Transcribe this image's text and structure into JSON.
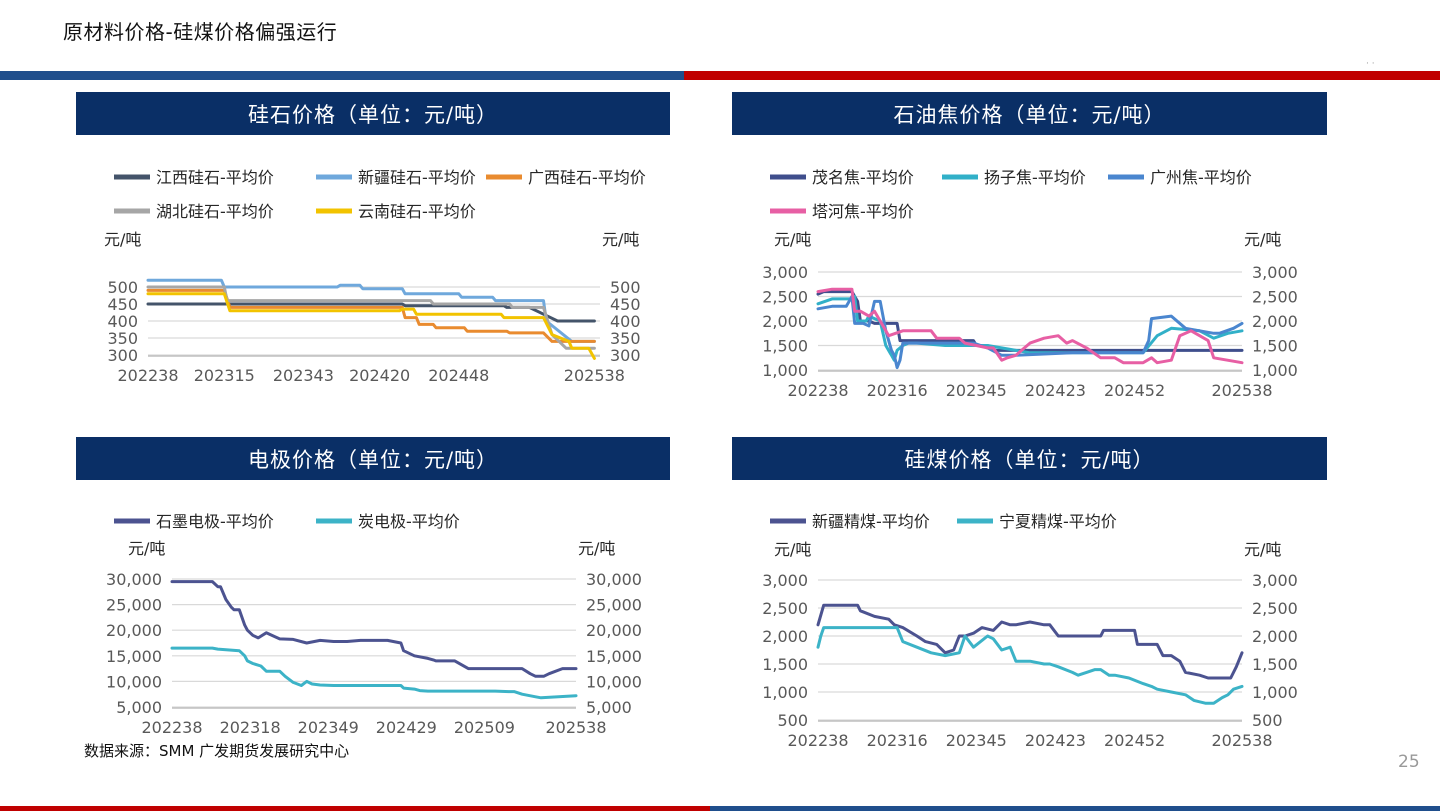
{
  "page": {
    "title": "原材料价格-硅煤价格偏强运行",
    "source": "数据来源：SMM 广发期货发展研究中心",
    "page_number": "25",
    "corner_mark": "· ·"
  },
  "colors": {
    "header_bg": "#0a2f66",
    "top_bar_blue": "#1f4e8c",
    "top_bar_red": "#c00000",
    "grid": "#d9d9d9",
    "axis_text": "#595959"
  },
  "chart_data": [
    {
      "id": "silica",
      "type": "line",
      "title": "硅石价格（单位：元/吨）",
      "ylabel_left": "元/吨",
      "ylabel_right": "元/吨",
      "ylim": [
        300,
        500
      ],
      "yticks": [
        300,
        350,
        400,
        450,
        500
      ],
      "yticklabels": [
        "300",
        "350",
        "400",
        "450",
        "500"
      ],
      "x_range": [
        0,
        160
      ],
      "xticks": [
        0,
        27,
        55,
        82,
        110,
        158
      ],
      "xticklabels": [
        "202238",
        "202315",
        "202343",
        "202420",
        "202448",
        "202538"
      ],
      "legend_rows": [
        [
          0,
          1,
          2
        ],
        [
          3,
          4
        ]
      ],
      "series": [
        {
          "name": "江西硅石-平均价",
          "color": "#44546a",
          "x": [
            0,
            27,
            28,
            48,
            49,
            90,
            91,
            126,
            127,
            135,
            140,
            145,
            158
          ],
          "values": [
            450,
            450,
            450,
            450,
            450,
            450,
            445,
            445,
            440,
            440,
            420,
            400,
            400
          ]
        },
        {
          "name": "新疆硅石-平均价",
          "color": "#6fa8dc",
          "x": [
            0,
            26,
            27,
            67,
            68,
            75,
            76,
            90,
            91,
            110,
            111,
            122,
            123,
            140,
            141,
            150,
            158
          ],
          "values": [
            520,
            520,
            500,
            500,
            505,
            505,
            495,
            495,
            480,
            480,
            470,
            470,
            460,
            460,
            400,
            340,
            340
          ]
        },
        {
          "name": "广西硅石-平均价",
          "color": "#e98b2f",
          "x": [
            0,
            27,
            29,
            90,
            91,
            95,
            96,
            101,
            102,
            112,
            113,
            127,
            128,
            140,
            143,
            158
          ],
          "values": [
            490,
            490,
            440,
            440,
            410,
            410,
            390,
            390,
            380,
            380,
            370,
            370,
            365,
            365,
            340,
            340
          ]
        },
        {
          "name": "湖北硅石-平均价",
          "color": "#a6a6a6",
          "x": [
            0,
            27,
            28,
            100,
            101,
            128,
            129,
            140,
            143,
            148,
            158
          ],
          "values": [
            500,
            500,
            460,
            460,
            450,
            450,
            440,
            440,
            360,
            320,
            320
          ]
        },
        {
          "name": "云南硅石-平均价",
          "color": "#f2c300",
          "x": [
            0,
            27,
            29,
            89,
            90,
            94,
            95,
            125,
            126,
            140,
            143,
            149,
            150,
            156,
            158
          ],
          "values": [
            480,
            480,
            430,
            430,
            435,
            435,
            420,
            420,
            410,
            410,
            360,
            340,
            320,
            320,
            290
          ]
        }
      ]
    },
    {
      "id": "petcoke",
      "type": "line",
      "title": "石油焦价格（单位：元/吨）",
      "ylabel_left": "元/吨",
      "ylabel_right": "元/吨",
      "ylim": [
        1000,
        3000
      ],
      "yticks": [
        1000,
        1500,
        2000,
        2500,
        3000
      ],
      "yticklabels": [
        "1,000",
        "1,500",
        "2,000",
        "2,500",
        "3,000"
      ],
      "x_range": [
        0,
        150
      ],
      "xticks": [
        0,
        28,
        56,
        84,
        112,
        150
      ],
      "xticklabels": [
        "202238",
        "202316",
        "202345",
        "202423",
        "202452",
        "202538"
      ],
      "legend_rows": [
        [
          0,
          1,
          2
        ],
        [
          3
        ]
      ],
      "series": [
        {
          "name": "茂名焦-平均价",
          "color": "#3f4e8c",
          "x": [
            0,
            2,
            12,
            14,
            15,
            18,
            20,
            28,
            29,
            30,
            55,
            56,
            60,
            62,
            150
          ],
          "values": [
            2550,
            2600,
            2600,
            2400,
            2000,
            2000,
            1950,
            1950,
            1600,
            1600,
            1600,
            1500,
            1500,
            1400,
            1400
          ]
        },
        {
          "name": "扬子焦-平均价",
          "color": "#31b0c8",
          "x": [
            0,
            5,
            12,
            13,
            14,
            17,
            18,
            20,
            22,
            24,
            26,
            27,
            28,
            30,
            32,
            35,
            45,
            60,
            75,
            100,
            105,
            115,
            120,
            125,
            135,
            140,
            145,
            150
          ],
          "values": [
            2350,
            2450,
            2450,
            2500,
            2000,
            2000,
            2100,
            2050,
            2000,
            1500,
            1300,
            1200,
            1400,
            1500,
            1550,
            1550,
            1500,
            1500,
            1350,
            1350,
            1350,
            1350,
            1700,
            1850,
            1800,
            1650,
            1750,
            1800
          ]
        },
        {
          "name": "广州焦-平均价",
          "color": "#4a86cf",
          "x": [
            0,
            5,
            10,
            12,
            13,
            16,
            18,
            20,
            22,
            24,
            26,
            27,
            28,
            29,
            30,
            35,
            55,
            60,
            65,
            70,
            90,
            115,
            117,
            118,
            125,
            130,
            140,
            142,
            147,
            150
          ],
          "values": [
            2250,
            2300,
            2300,
            2500,
            1950,
            1950,
            1900,
            2400,
            2400,
            1800,
            1400,
            1300,
            1050,
            1200,
            1550,
            1550,
            1550,
            1450,
            1300,
            1300,
            1350,
            1350,
            1600,
            2050,
            2100,
            1850,
            1750,
            1750,
            1850,
            1950
          ]
        },
        {
          "name": "塔河焦-平均价",
          "color": "#e75fa4",
          "x": [
            0,
            5,
            12,
            13,
            15,
            18,
            20,
            22,
            25,
            30,
            40,
            42,
            50,
            52,
            60,
            62,
            65,
            67,
            70,
            72,
            75,
            80,
            85,
            88,
            90,
            95,
            100,
            105,
            108,
            115,
            118,
            120,
            125,
            128,
            130,
            132,
            138,
            140,
            150
          ],
          "values": [
            2600,
            2650,
            2650,
            2200,
            2200,
            2100,
            2200,
            2000,
            1700,
            1800,
            1800,
            1650,
            1650,
            1550,
            1450,
            1450,
            1200,
            1250,
            1300,
            1400,
            1550,
            1650,
            1700,
            1550,
            1600,
            1450,
            1250,
            1250,
            1150,
            1150,
            1250,
            1150,
            1200,
            1700,
            1750,
            1800,
            1600,
            1250,
            1150
          ]
        }
      ]
    },
    {
      "id": "electrode",
      "type": "line",
      "title": "电极价格（单位：元/吨）",
      "ylabel_left": "元/吨",
      "ylabel_right": "元/吨",
      "ylim": [
        5000,
        30000
      ],
      "yticks": [
        5000,
        10000,
        15000,
        20000,
        25000,
        30000
      ],
      "yticklabels": [
        "5,000",
        "10,000",
        "15,000",
        "20,000",
        "25,000",
        "30,000"
      ],
      "x_range": [
        0,
        150
      ],
      "xticks": [
        0,
        29,
        58,
        87,
        116,
        150
      ],
      "xticklabels": [
        "202238",
        "202318",
        "202349",
        "202429",
        "202509",
        "202538"
      ],
      "legend_rows": [
        [
          0,
          1
        ]
      ],
      "series": [
        {
          "name": "石墨电极-平均价",
          "color": "#4c5390",
          "x": [
            0,
            15,
            17,
            18,
            20,
            22,
            23,
            25,
            27,
            28,
            30,
            32,
            35,
            40,
            45,
            50,
            55,
            60,
            65,
            70,
            80,
            85,
            86,
            90,
            95,
            97,
            98,
            100,
            105,
            110,
            115,
            120,
            122,
            125,
            127,
            130,
            133,
            135,
            138,
            140,
            145,
            150
          ],
          "values": [
            29500,
            29500,
            28500,
            28500,
            26000,
            24500,
            24000,
            24000,
            21000,
            20000,
            19000,
            18500,
            19500,
            18300,
            18200,
            17500,
            18000,
            17800,
            17800,
            18000,
            18000,
            17500,
            16000,
            15000,
            14500,
            14200,
            14000,
            14000,
            14000,
            12500,
            12500,
            12500,
            12500,
            12500,
            12500,
            12500,
            11500,
            11000,
            11000,
            11500,
            12500,
            12500
          ]
        },
        {
          "name": "炭电极-平均价",
          "color": "#3cb3c7",
          "x": [
            0,
            15,
            17,
            25,
            27,
            28,
            30,
            33,
            35,
            40,
            42,
            45,
            48,
            50,
            52,
            55,
            60,
            70,
            80,
            85,
            86,
            90,
            92,
            95,
            120,
            125,
            127,
            130,
            135,
            137,
            150
          ],
          "values": [
            16500,
            16500,
            16300,
            16000,
            15000,
            14000,
            13500,
            13000,
            12000,
            12000,
            11000,
            9800,
            9200,
            10000,
            9500,
            9300,
            9200,
            9200,
            9200,
            9200,
            8700,
            8500,
            8200,
            8100,
            8100,
            8000,
            8000,
            7500,
            7000,
            6800,
            7200
          ]
        }
      ]
    },
    {
      "id": "silicon_coal",
      "type": "line",
      "title": "硅煤价格（单位：元/吨）",
      "ylabel_left": "元/吨",
      "ylabel_right": "元/吨",
      "ylim": [
        500,
        3000
      ],
      "yticks": [
        500,
        1000,
        1500,
        2000,
        2500,
        3000
      ],
      "yticklabels": [
        "500",
        "1,000",
        "1,500",
        "2,000",
        "2,500",
        "3,000"
      ],
      "x_range": [
        0,
        150
      ],
      "xticks": [
        0,
        28,
        56,
        84,
        112,
        150
      ],
      "xticklabels": [
        "202238",
        "202316",
        "202345",
        "202423",
        "202452",
        "202538"
      ],
      "legend_rows": [
        [
          0,
          1
        ]
      ],
      "series": [
        {
          "name": "新疆精煤-平均价",
          "color": "#4c5390",
          "x": [
            0,
            2,
            14,
            15,
            20,
            25,
            27,
            30,
            35,
            38,
            42,
            45,
            48,
            50,
            52,
            55,
            58,
            62,
            65,
            68,
            70,
            75,
            80,
            82,
            85,
            90,
            100,
            101,
            112,
            113,
            117,
            120,
            122,
            125,
            128,
            130,
            135,
            138,
            142,
            146,
            148,
            150
          ],
          "values": [
            2200,
            2550,
            2550,
            2450,
            2350,
            2300,
            2200,
            2150,
            2000,
            1900,
            1850,
            1700,
            1750,
            2000,
            2000,
            2050,
            2150,
            2100,
            2250,
            2200,
            2200,
            2250,
            2200,
            2200,
            2000,
            2000,
            2000,
            2100,
            2100,
            1850,
            1850,
            1850,
            1650,
            1650,
            1550,
            1350,
            1300,
            1250,
            1250,
            1250,
            1450,
            1700
          ]
        },
        {
          "name": "宁夏精煤-平均价",
          "color": "#3cb3c7",
          "x": [
            0,
            1,
            2,
            12,
            28,
            30,
            35,
            40,
            45,
            50,
            52,
            55,
            60,
            62,
            65,
            68,
            70,
            75,
            80,
            82,
            85,
            90,
            92,
            95,
            98,
            100,
            103,
            105,
            110,
            115,
            118,
            120,
            125,
            130,
            133,
            137,
            140,
            143,
            145,
            147,
            150
          ],
          "values": [
            1800,
            2000,
            2150,
            2150,
            2150,
            1900,
            1800,
            1700,
            1650,
            1700,
            2000,
            1800,
            2000,
            1950,
            1750,
            1800,
            1550,
            1550,
            1500,
            1500,
            1450,
            1350,
            1300,
            1350,
            1400,
            1400,
            1300,
            1300,
            1250,
            1150,
            1100,
            1050,
            1000,
            950,
            850,
            800,
            800,
            900,
            950,
            1050,
            1100
          ]
        }
      ]
    }
  ]
}
